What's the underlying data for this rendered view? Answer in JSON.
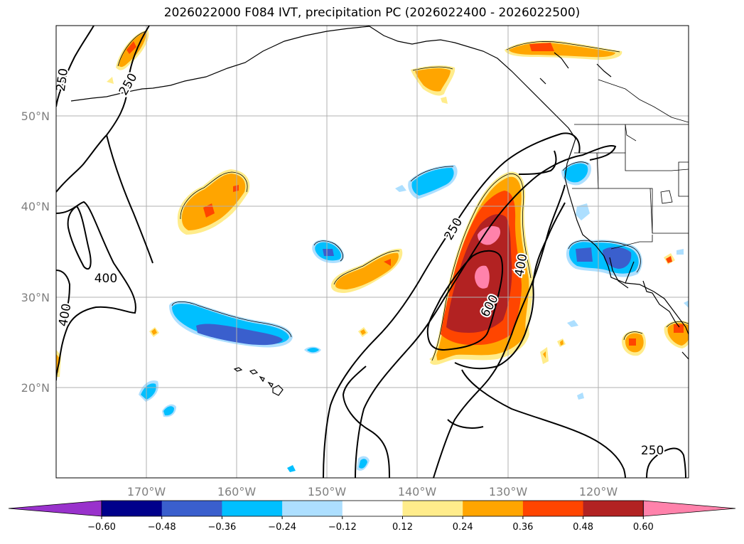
{
  "title": "2026022000 F084 IVT, precipitation PC (2026022400 - 2026022500)",
  "map": {
    "extent": {
      "lon_min": -180,
      "lon_max": -110,
      "lat_min": 10,
      "lat_max": 60
    },
    "lat_labels": [
      "50°N",
      "40°N",
      "30°N",
      "20°N"
    ],
    "lon_labels": [
      "170°W",
      "160°W",
      "150°W",
      "140°W",
      "130°W",
      "120°W"
    ],
    "ivt_contour_levels": [
      "250",
      "400",
      "600"
    ],
    "ivt_contour_labels": [
      {
        "text": "250",
        "lon": -179.3,
        "lat": 54.0,
        "angle": -82
      },
      {
        "text": "250",
        "lon": -172.0,
        "lat": 53.5,
        "angle": -60
      },
      {
        "text": "400",
        "lon": -174.5,
        "lat": 32.0,
        "angle": 0
      },
      {
        "text": "400",
        "lon": -179.0,
        "lat": 28.0,
        "angle": -80
      },
      {
        "text": "250",
        "lon": -136.0,
        "lat": 37.5,
        "angle": -60
      },
      {
        "text": "600",
        "lon": -132.0,
        "lat": 29.0,
        "angle": -62
      },
      {
        "text": "400",
        "lon": -128.5,
        "lat": 33.5,
        "angle": -80
      },
      {
        "text": "250",
        "lon": -114.0,
        "lat": 13.0,
        "angle": 0
      }
    ]
  },
  "colorbar": {
    "tick_labels": [
      "−0.60",
      "−0.48",
      "−0.36",
      "−0.24",
      "−0.12",
      "0.12",
      "0.24",
      "0.36",
      "0.48",
      "0.60"
    ],
    "colors": [
      "#9932CC",
      "#00008B",
      "#3A5FCD",
      "#00BFFF",
      "#ADDFFF",
      "#FFFFFF",
      "#FFEC8B",
      "#FFA500",
      "#FF4500",
      "#B22222",
      "#FF82AB"
    ]
  }
}
